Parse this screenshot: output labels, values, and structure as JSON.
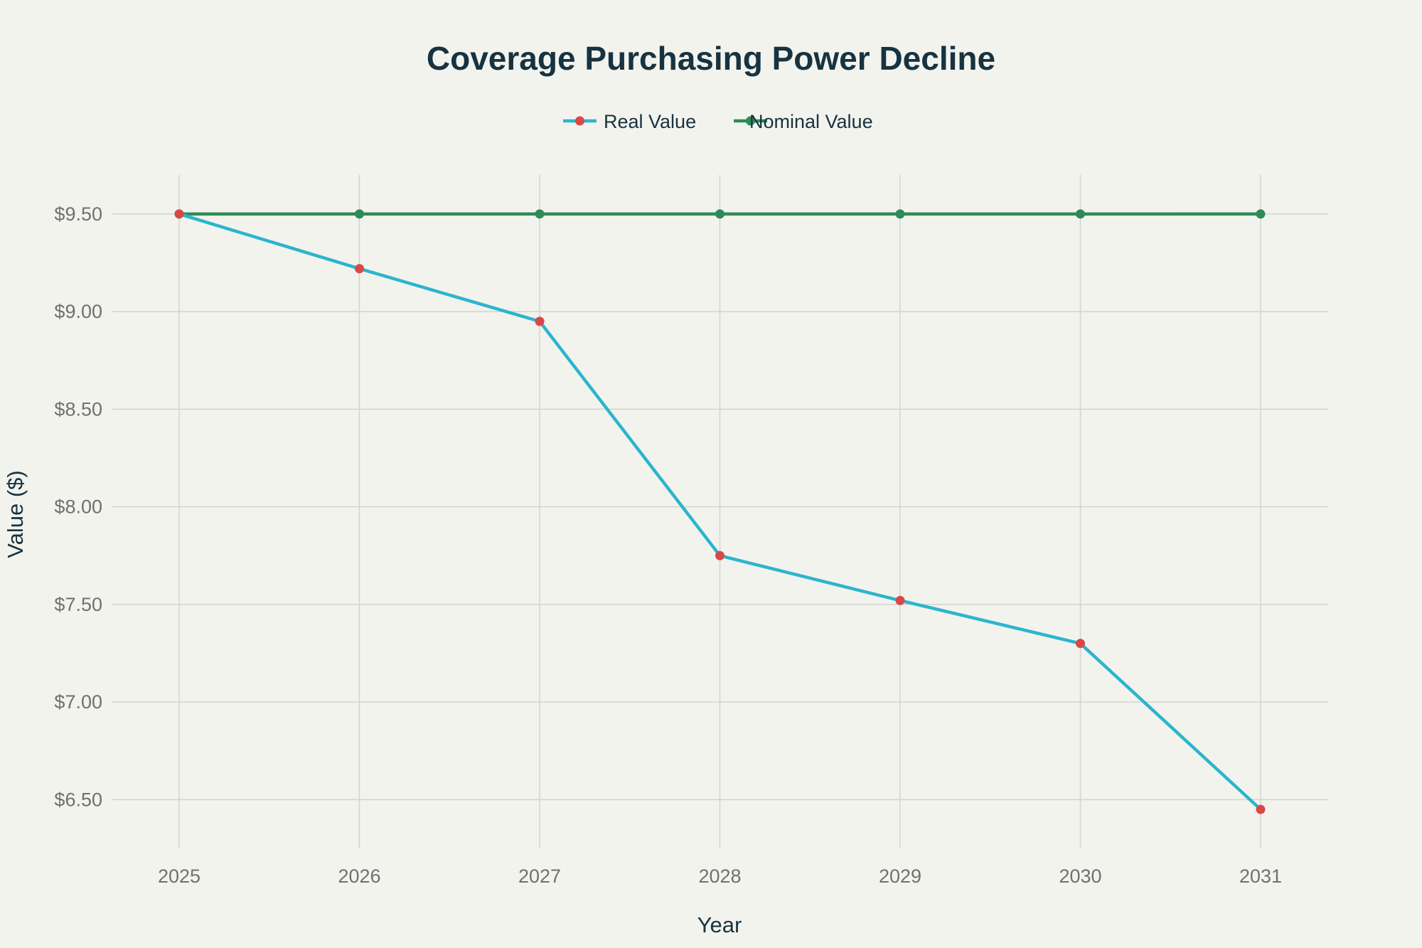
{
  "chart_data": {
    "type": "line",
    "title": "Coverage Purchasing Power Decline",
    "xlabel": "Year",
    "ylabel": "Value ($)",
    "x": [
      "2025",
      "2026",
      "2027",
      "2028",
      "2029",
      "2030",
      "2031"
    ],
    "ylim": [
      6.25,
      9.7
    ],
    "y_ticks": [
      6.5,
      7.0,
      7.5,
      8.0,
      8.5,
      9.0,
      9.5
    ],
    "y_tick_labels": [
      "$6.50",
      "$7.00",
      "$7.50",
      "$8.00",
      "$8.50",
      "$9.00",
      "$9.50"
    ],
    "grid": true,
    "legend_position": "top-center",
    "series": [
      {
        "name": "Real Value",
        "values": [
          9.5,
          9.22,
          8.95,
          7.75,
          7.52,
          7.3,
          6.45
        ],
        "line_color": "#2bb5cd",
        "marker_color": "#d94848"
      },
      {
        "name": "Nominal Value",
        "values": [
          9.5,
          9.5,
          9.5,
          9.5,
          9.5,
          9.5,
          9.5
        ],
        "line_color": "#2e8b57",
        "marker_color": "#2e8b57"
      }
    ]
  }
}
